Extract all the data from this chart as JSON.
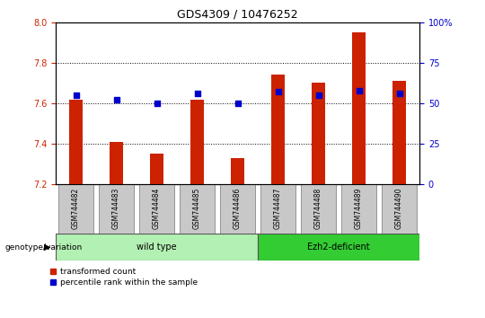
{
  "title": "GDS4309 / 10476252",
  "samples": [
    "GSM744482",
    "GSM744483",
    "GSM744484",
    "GSM744485",
    "GSM744486",
    "GSM744487",
    "GSM744488",
    "GSM744489",
    "GSM744490"
  ],
  "transformed_count": [
    7.62,
    7.41,
    7.35,
    7.62,
    7.33,
    7.74,
    7.7,
    7.95,
    7.71
  ],
  "percentile_rank": [
    55,
    52,
    50,
    56,
    50,
    57,
    55,
    58,
    56
  ],
  "ylim_left": [
    7.2,
    8.0
  ],
  "ylim_right": [
    0,
    100
  ],
  "yticks_left": [
    7.2,
    7.4,
    7.6,
    7.8,
    8.0
  ],
  "yticks_right": [
    0,
    25,
    50,
    75,
    100
  ],
  "ytick_right_labels": [
    "0",
    "25",
    "50",
    "75",
    "100%"
  ],
  "groups": [
    {
      "label": "wild type",
      "indices": [
        0,
        1,
        2,
        3,
        4
      ],
      "color": "#b3f0b3"
    },
    {
      "label": "Ezh2-deficient",
      "indices": [
        5,
        6,
        7,
        8
      ],
      "color": "#33cc33"
    }
  ],
  "group_label": "genotype/variation",
  "bar_color": "#cc2200",
  "dot_color": "#0000cc",
  "bar_width": 0.35,
  "legend_items": [
    {
      "label": "transformed count",
      "color": "#cc2200",
      "marker": "s"
    },
    {
      "label": "percentile rank within the sample",
      "color": "#0000cc",
      "marker": "s"
    }
  ],
  "tick_color_left": "#cc2200",
  "tick_color_right": "#0000cc",
  "sample_box_color": "#c8c8c8",
  "title_fontsize": 9,
  "tick_fontsize": 7,
  "label_fontsize": 7
}
